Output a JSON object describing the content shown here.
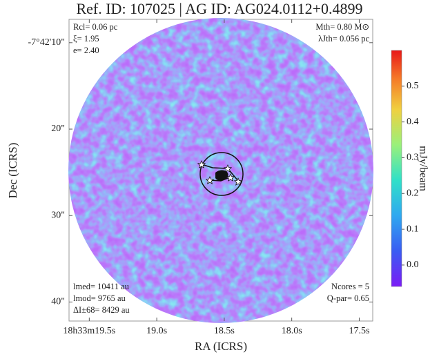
{
  "chart_data": {
    "type": "image",
    "title": "Ref. ID: 107025 | AG ID: AG024.0112+0.4899",
    "x_label": "RA (ICRS)",
    "y_label": "Dec (ICRS)",
    "colorbar_label": "mJy/beam",
    "xlim": [
      19.65,
      17.4
    ],
    "xticks": [
      {
        "value": 19.5,
        "label": "18h33m19.5s"
      },
      {
        "value": 19.0,
        "label": "19.0s"
      },
      {
        "value": 18.5,
        "label": "18.5s"
      },
      {
        "value": 18.0,
        "label": "18.0s"
      },
      {
        "value": 17.5,
        "label": "17.5s"
      }
    ],
    "ylim": [
      7.3,
      42.2
    ],
    "yticks": [
      {
        "value": 10,
        "label": "-7°42'10\""
      },
      {
        "value": 20,
        "label": "20\""
      },
      {
        "value": 30,
        "label": "30\""
      },
      {
        "value": 40,
        "label": "40\""
      }
    ],
    "clim": [
      -0.06,
      0.6
    ],
    "cticks": [
      {
        "value": 0,
        "label": "0.0"
      },
      0.1,
      0.2,
      0.3,
      0.4,
      0.5
    ],
    "annotations_top_left": [
      "Rcl= 0.06 pc",
      "ξ= 1.95",
      "e= 2.40"
    ],
    "annotations_top_right": [
      "Mth= 0.80 M⊙",
      "λJth= 0.056 pc"
    ],
    "annotations_bottom_left": [
      "lmed= 10411 au",
      "lmod= 9765 au",
      "ΔI±68= 8429 au"
    ],
    "annotations_bottom_right": [
      "Ncores = 5",
      "Q-par= 0.65"
    ]
  }
}
